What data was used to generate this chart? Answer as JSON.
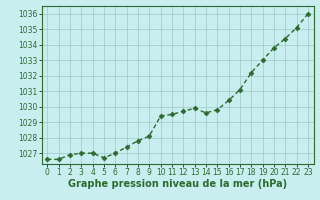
{
  "x": [
    0,
    1,
    2,
    3,
    4,
    5,
    6,
    7,
    8,
    9,
    10,
    11,
    12,
    13,
    14,
    15,
    16,
    17,
    18,
    19,
    20,
    21,
    22,
    23
  ],
  "y": [
    1026.6,
    1026.6,
    1026.9,
    1027.0,
    1027.0,
    1026.7,
    1027.0,
    1027.4,
    1027.8,
    1028.1,
    1029.4,
    1029.5,
    1029.7,
    1029.9,
    1029.6,
    1029.8,
    1030.4,
    1031.1,
    1032.2,
    1033.0,
    1033.8,
    1034.4,
    1035.1,
    1036.0
  ],
  "xlim": [
    -0.5,
    23.5
  ],
  "ylim": [
    1026.3,
    1036.5
  ],
  "yticks": [
    1027,
    1028,
    1029,
    1030,
    1031,
    1032,
    1033,
    1034,
    1035,
    1036
  ],
  "xticks": [
    0,
    1,
    2,
    3,
    4,
    5,
    6,
    7,
    8,
    9,
    10,
    11,
    12,
    13,
    14,
    15,
    16,
    17,
    18,
    19,
    20,
    21,
    22,
    23
  ],
  "line_color": "#2d6a2d",
  "marker": "D",
  "marker_size": 2.5,
  "line_width": 1.0,
  "bg_color": "#c8eef0",
  "grid_color": "#a0c8c8",
  "xlabel": "Graphe pression niveau de la mer (hPa)",
  "xlabel_fontsize": 7,
  "tick_fontsize": 5.5,
  "ytick_fontsize": 5.5
}
